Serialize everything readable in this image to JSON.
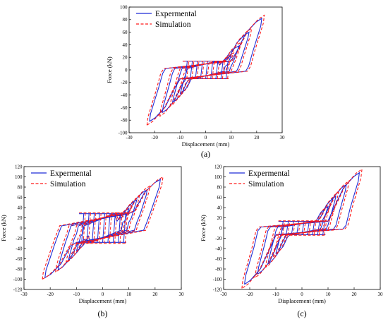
{
  "figure": {
    "subplots": [
      {
        "id": "a",
        "panel_label": "(a)"
      },
      {
        "id": "b",
        "panel_label": "(b)"
      },
      {
        "id": "c",
        "panel_label": "(c)"
      }
    ]
  },
  "colors": {
    "experimental": "#1f2bd6",
    "simulation": "#ff1a1a",
    "axis": "#000000"
  },
  "chart_data": [
    {
      "type": "line",
      "panel": "(a)",
      "xlabel": "Displacement (mm)",
      "ylabel": "Force (kN)",
      "xlim": [
        -30,
        30
      ],
      "ylim": [
        -100,
        100
      ],
      "xticks": [
        -30,
        -20,
        -10,
        0,
        10,
        20,
        30
      ],
      "yticks": [
        -100,
        -80,
        -60,
        -40,
        -20,
        0,
        20,
        40,
        60,
        80,
        100
      ],
      "grid": false,
      "legend": "top-left",
      "series": [
        {
          "name": "Expermental",
          "style": "solid",
          "loops": [
            {
              "amp": 22.0,
              "fmax": 82,
              "fmin": -82
            },
            {
              "amp": 17.0,
              "fmax": 60,
              "fmin": -68
            },
            {
              "amp": 13.0,
              "fmax": 38,
              "fmin": -52
            },
            {
              "amp": 10.0,
              "fmax": 22,
              "fmin": -38
            }
          ],
          "plateau": 14,
          "plateau_cycles": [
            -8,
            -6,
            -4,
            -2,
            0,
            2,
            4,
            6,
            8
          ]
        },
        {
          "name": "Simulation",
          "style": "dashed",
          "loops": [
            {
              "amp": 23.0,
              "fmax": 87,
              "fmin": -88
            },
            {
              "amp": 18.0,
              "fmax": 66,
              "fmin": -74
            },
            {
              "amp": 14.0,
              "fmax": 44,
              "fmin": -58
            },
            {
              "amp": 11.0,
              "fmax": 27,
              "fmin": -44
            }
          ],
          "plateau": 14,
          "plateau_cycles": [
            -8,
            -6,
            -4,
            -2,
            0,
            2,
            4,
            6,
            8
          ]
        }
      ]
    },
    {
      "type": "line",
      "panel": "(b)",
      "xlabel": "Displacement (mm)",
      "ylabel": "Force (kN)",
      "xlim": [
        -30,
        30
      ],
      "ylim": [
        -120,
        120
      ],
      "xticks": [
        -30,
        -20,
        -10,
        0,
        10,
        20,
        30
      ],
      "yticks": [
        -120,
        -100,
        -80,
        -60,
        -40,
        -20,
        0,
        20,
        40,
        60,
        80,
        100,
        120
      ],
      "grid": false,
      "legend": "top-left",
      "series": [
        {
          "name": "Expermental",
          "style": "solid",
          "loops": [
            {
              "amp": 22.0,
              "fmax": 95,
              "fmin": -97
            },
            {
              "amp": 17.0,
              "fmax": 75,
              "fmin": -82
            },
            {
              "amp": 13.0,
              "fmax": 55,
              "fmin": -62
            },
            {
              "amp": 10.0,
              "fmax": 38,
              "fmin": -45
            }
          ],
          "plateau": 28,
          "plateau_cycles": [
            -8,
            -6,
            -4,
            -2,
            0,
            2,
            4,
            6,
            8
          ]
        },
        {
          "name": "Simulation",
          "style": "dashed",
          "loops": [
            {
              "amp": 23.0,
              "fmax": 100,
              "fmin": -100
            },
            {
              "amp": 18.0,
              "fmax": 82,
              "fmin": -86
            },
            {
              "amp": 14.0,
              "fmax": 62,
              "fmin": -68
            },
            {
              "amp": 11.0,
              "fmax": 44,
              "fmin": -50
            }
          ],
          "plateau": 30,
          "plateau_cycles": [
            -8,
            -6,
            -4,
            -2,
            0,
            2,
            4,
            6,
            8
          ]
        }
      ]
    },
    {
      "type": "line",
      "panel": "(c)",
      "xlabel": "Displacement (mm)",
      "ylabel": "Force (kN)",
      "xlim": [
        -30,
        30
      ],
      "ylim": [
        -120,
        120
      ],
      "xticks": [
        -30,
        -20,
        -10,
        0,
        10,
        20,
        30
      ],
      "yticks": [
        -120,
        -100,
        -80,
        -60,
        -40,
        -20,
        0,
        20,
        40,
        60,
        80,
        100,
        120
      ],
      "grid": false,
      "legend": "top-left",
      "series": [
        {
          "name": "Expermental",
          "style": "solid",
          "loops": [
            {
              "amp": 22.0,
              "fmax": 108,
              "fmin": -110
            },
            {
              "amp": 17.0,
              "fmax": 85,
              "fmin": -90
            },
            {
              "amp": 13.0,
              "fmax": 62,
              "fmin": -70
            },
            {
              "amp": 10.0,
              "fmax": 42,
              "fmin": -50
            }
          ],
          "plateau": 13,
          "plateau_cycles": [
            -8,
            -6,
            -4,
            -2,
            0,
            2,
            4,
            6,
            8
          ]
        },
        {
          "name": "Simulation",
          "style": "dashed",
          "loops": [
            {
              "amp": 23.0,
              "fmax": 115,
              "fmin": -118
            },
            {
              "amp": 18.0,
              "fmax": 92,
              "fmin": -97
            },
            {
              "amp": 14.0,
              "fmax": 70,
              "fmin": -77
            },
            {
              "amp": 11.0,
              "fmax": 48,
              "fmin": -56
            }
          ],
          "plateau": 14,
          "plateau_cycles": [
            -8,
            -6,
            -4,
            -2,
            0,
            2,
            4,
            6,
            8
          ]
        }
      ]
    }
  ]
}
